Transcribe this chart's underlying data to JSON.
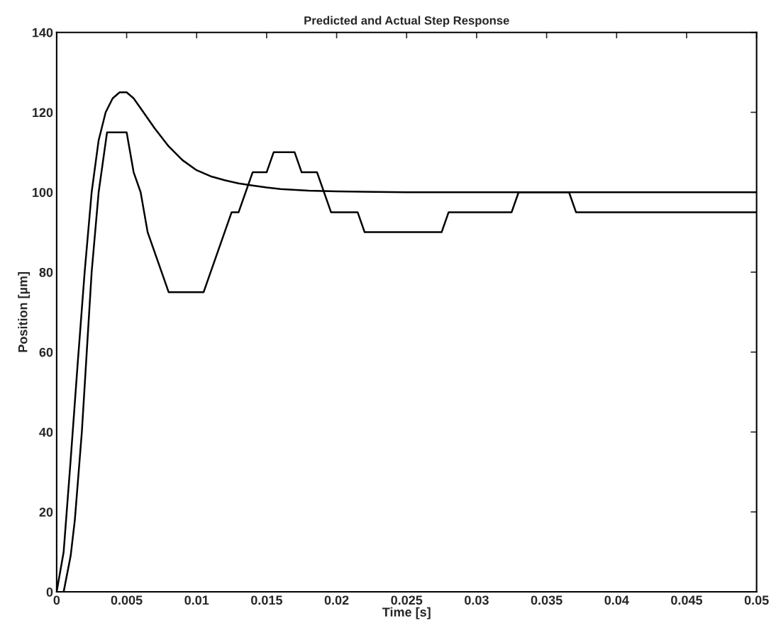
{
  "chart_data": {
    "type": "line",
    "title": "Predicted and Actual Step Response",
    "xlabel": "Time [s]",
    "ylabel": "Position [µm]",
    "xlim": [
      0,
      0.05
    ],
    "ylim": [
      0,
      140
    ],
    "xticks": [
      0,
      0.005,
      0.01,
      0.015,
      0.02,
      0.025,
      0.03,
      0.035,
      0.04,
      0.045,
      0.05
    ],
    "yticks": [
      0,
      20,
      40,
      60,
      80,
      100,
      120,
      140
    ],
    "grid": false,
    "legend": false,
    "line_style": "solid",
    "marker": "none",
    "series": [
      {
        "color": "#000000",
        "x": [
          0,
          0.0005,
          0.001,
          0.0015,
          0.002,
          0.0025,
          0.003,
          0.0035,
          0.004,
          0.0045,
          0.005,
          0.0055,
          0.006,
          0.007,
          0.008,
          0.009,
          0.01,
          0.011,
          0.012,
          0.013,
          0.014,
          0.015,
          0.016,
          0.018,
          0.02,
          0.025,
          0.05
        ],
        "values": [
          0,
          10,
          33,
          57,
          80,
          100,
          113,
          120,
          123.5,
          125,
          125,
          123.5,
          121,
          116,
          111.5,
          108,
          105.5,
          104,
          103,
          102.2,
          101.7,
          101.2,
          100.8,
          100.4,
          100.2,
          100,
          100
        ]
      },
      {
        "color": "#000000",
        "x": [
          0.0005,
          0.001,
          0.0013,
          0.0018,
          0.0025,
          0.003,
          0.0036,
          0.005,
          0.0055,
          0.006,
          0.0065,
          0.008,
          0.0105,
          0.0125,
          0.013,
          0.014,
          0.015,
          0.0155,
          0.017,
          0.0175,
          0.0186,
          0.0196,
          0.0215,
          0.022,
          0.0275,
          0.028,
          0.0325,
          0.033,
          0.0366,
          0.0371,
          0.05
        ],
        "values": [
          0,
          9,
          18,
          40,
          80,
          100,
          115,
          115,
          105,
          100,
          90,
          75,
          75,
          95,
          95,
          105,
          105,
          110,
          110,
          105,
          105,
          95,
          95,
          90,
          90,
          95,
          95,
          100,
          100,
          95,
          95
        ]
      }
    ]
  }
}
